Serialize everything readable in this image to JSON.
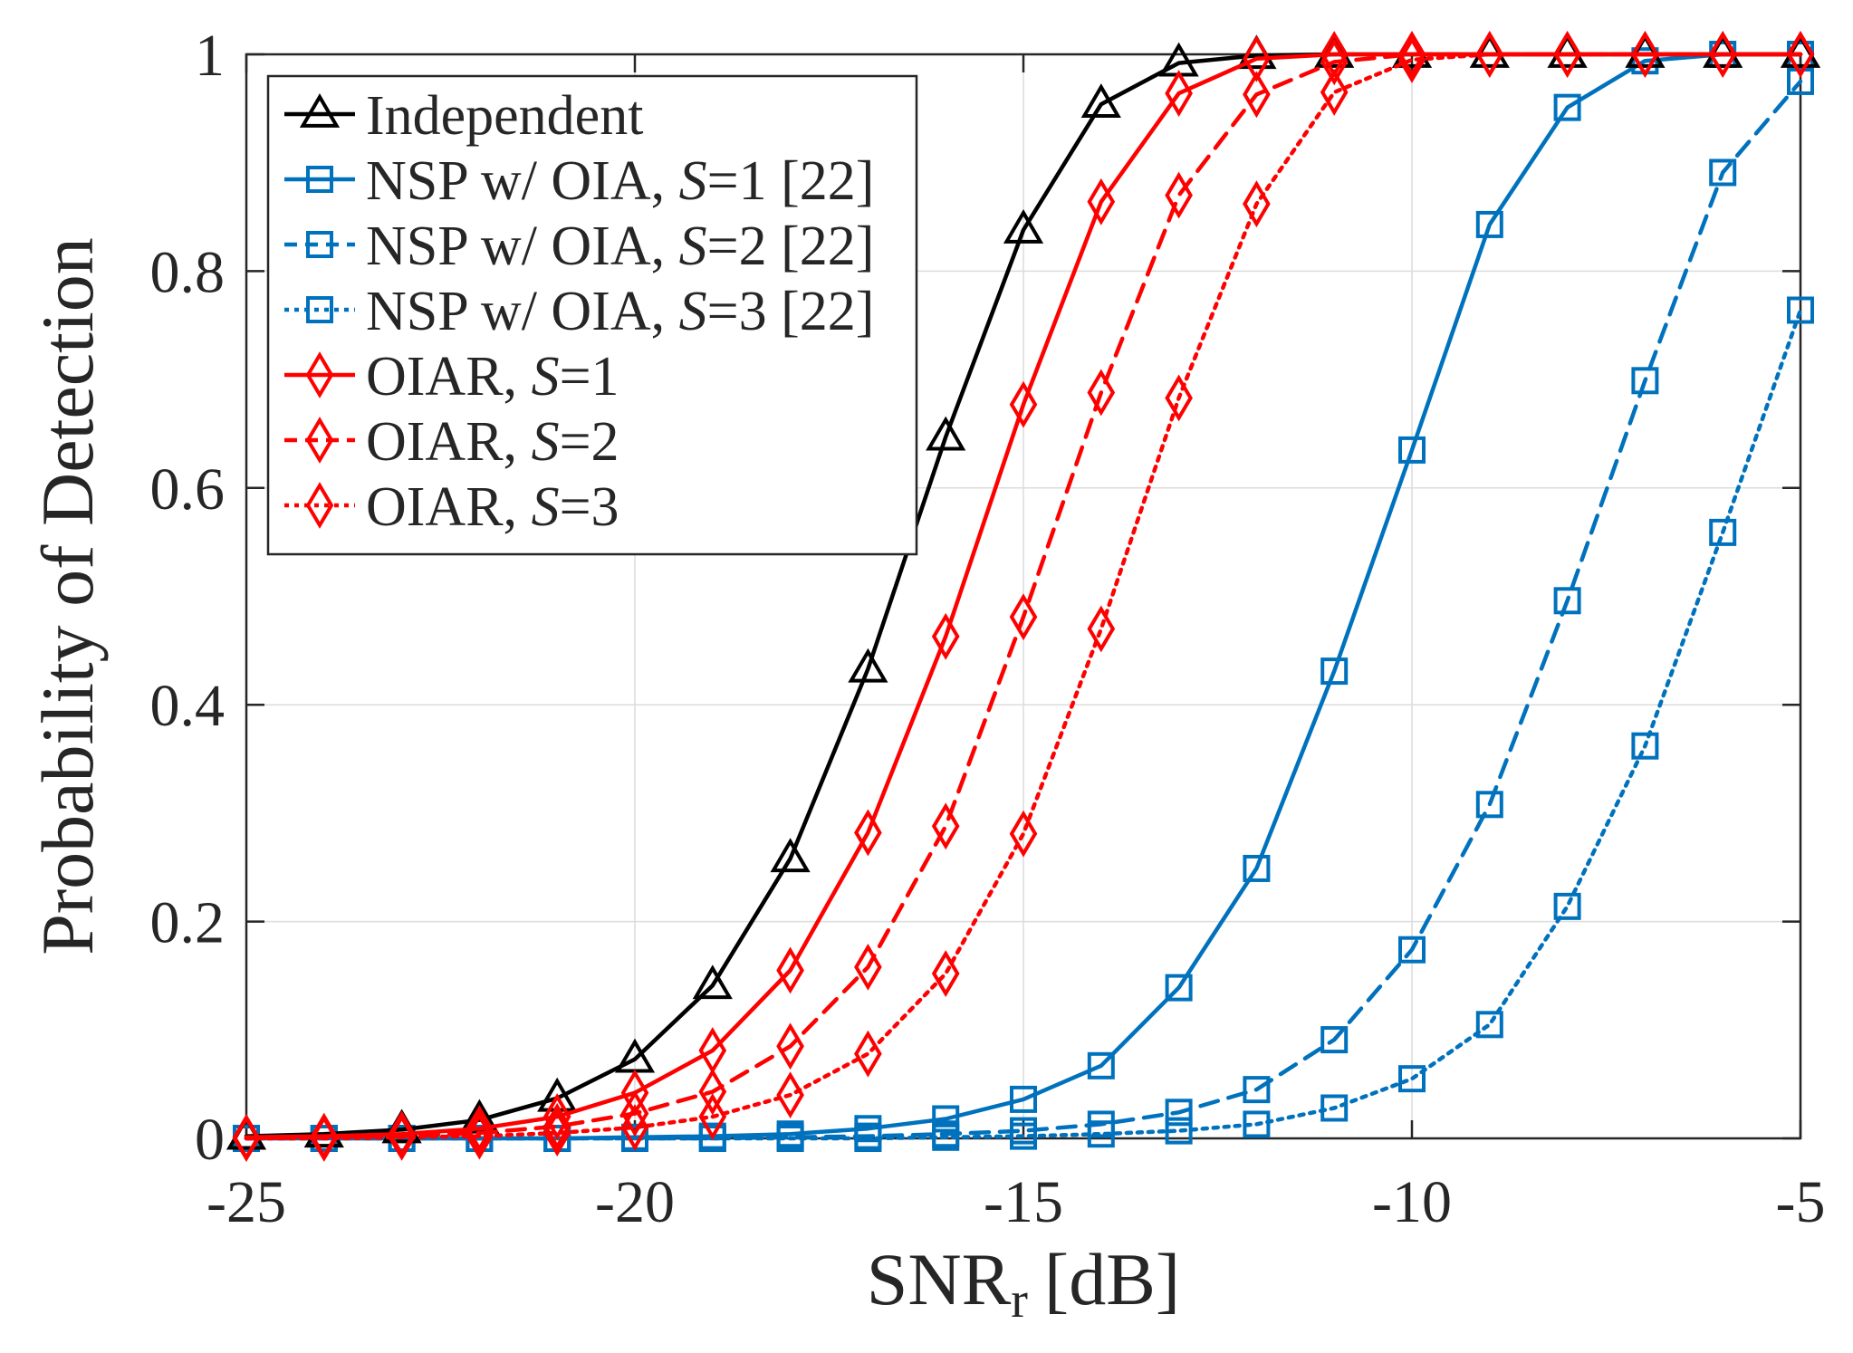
{
  "chart_data": {
    "type": "line",
    "title": "",
    "xlabel": "SNR",
    "xlabel_subscript": "r",
    "xlabel_unit": "[dB]",
    "ylabel": "Probability of Detection",
    "xlim": [
      -25,
      -5
    ],
    "ylim": [
      0,
      1
    ],
    "xticks": [
      -25,
      -20,
      -15,
      -10,
      -5
    ],
    "xtick_labels": [
      "-25",
      "-20",
      "-15",
      "-10",
      "-5"
    ],
    "yticks": [
      0,
      0.2,
      0.4,
      0.6,
      0.8,
      1
    ],
    "ytick_labels": [
      "0",
      "0.2",
      "0.4",
      "0.6",
      "0.8",
      "1"
    ],
    "grid": true,
    "legend_position": "top-left",
    "x": [
      -25,
      -24,
      -23,
      -22,
      -21,
      -20,
      -19,
      -18,
      -17,
      -16,
      -15,
      -14,
      -13,
      -12,
      -11,
      -10,
      -9,
      -8,
      -7,
      -6,
      -5
    ],
    "series": [
      {
        "name": "Independent",
        "legend_parts": [
          {
            "text": "Independent",
            "italic": false
          }
        ],
        "color": "#000000",
        "dash": "solid",
        "marker": "triangle",
        "values": [
          0.002,
          0.004,
          0.008,
          0.017,
          0.037,
          0.073,
          0.141,
          0.258,
          0.433,
          0.647,
          0.838,
          0.954,
          0.992,
          0.999,
          1.0,
          1.0,
          1.0,
          1.0,
          1.0,
          1.0,
          1.0
        ]
      },
      {
        "name": "NSP w/ OIA, S=1 [22]",
        "legend_parts": [
          {
            "text": "NSP w/ OIA, ",
            "italic": false
          },
          {
            "text": "S",
            "italic": true
          },
          {
            "text": "=1 [22]",
            "italic": false
          }
        ],
        "color": "#0072bd",
        "dash": "solid",
        "marker": "square",
        "values": [
          0.0,
          0.0,
          0.0,
          0.0,
          0.0,
          0.001,
          0.002,
          0.004,
          0.009,
          0.018,
          0.036,
          0.067,
          0.139,
          0.249,
          0.431,
          0.635,
          0.843,
          0.951,
          0.994,
          1.0,
          1.0
        ]
      },
      {
        "name": "NSP w/ OIA, S=2 [22]",
        "legend_parts": [
          {
            "text": "NSP w/ OIA, ",
            "italic": false
          },
          {
            "text": "S",
            "italic": true
          },
          {
            "text": "=2 [22]",
            "italic": false
          }
        ],
        "color": "#0072bd",
        "dash": "dashed",
        "marker": "square",
        "values": [
          0.0,
          0.0,
          0.0,
          0.0,
          0.0,
          0.0,
          0.0,
          0.001,
          0.002,
          0.004,
          0.007,
          0.013,
          0.024,
          0.045,
          0.091,
          0.174,
          0.308,
          0.496,
          0.699,
          0.891,
          0.975
        ]
      },
      {
        "name": "NSP w/ OIA, S=3 [22]",
        "legend_parts": [
          {
            "text": "NSP w/ OIA, ",
            "italic": false
          },
          {
            "text": "S",
            "italic": true
          },
          {
            "text": "=3 [22]",
            "italic": false
          }
        ],
        "color": "#0072bd",
        "dash": "dotted",
        "marker": "square",
        "values": [
          0.0,
          0.0,
          0.0,
          0.0,
          0.0,
          0.0,
          0.0,
          0.0,
          0.0,
          0.001,
          0.002,
          0.004,
          0.007,
          0.013,
          0.028,
          0.055,
          0.105,
          0.214,
          0.362,
          0.559,
          0.764
        ]
      },
      {
        "name": "OIAR, S=1",
        "legend_parts": [
          {
            "text": "OIAR, ",
            "italic": false
          },
          {
            "text": "S",
            "italic": true
          },
          {
            "text": "=1",
            "italic": false
          }
        ],
        "color": "#ff0000",
        "dash": "solid",
        "marker": "diamond",
        "values": [
          0.001,
          0.002,
          0.004,
          0.009,
          0.02,
          0.042,
          0.081,
          0.155,
          0.282,
          0.463,
          0.677,
          0.864,
          0.964,
          0.996,
          1.0,
          1.0,
          1.0,
          1.0,
          1.0,
          1.0,
          1.0
        ]
      },
      {
        "name": "OIAR, S=2",
        "legend_parts": [
          {
            "text": "OIAR, ",
            "italic": false
          },
          {
            "text": "S",
            "italic": true
          },
          {
            "text": "=2",
            "italic": false
          }
        ],
        "color": "#ff0000",
        "dash": "dashed",
        "marker": "diamond",
        "values": [
          0.0,
          0.001,
          0.002,
          0.005,
          0.011,
          0.023,
          0.043,
          0.085,
          0.158,
          0.288,
          0.481,
          0.688,
          0.87,
          0.963,
          0.993,
          1.0,
          1.0,
          1.0,
          1.0,
          1.0,
          1.0
        ]
      },
      {
        "name": "OIAR, S=3",
        "legend_parts": [
          {
            "text": "OIAR, ",
            "italic": false
          },
          {
            "text": "S",
            "italic": true
          },
          {
            "text": "=3",
            "italic": false
          }
        ],
        "color": "#ff0000",
        "dash": "dotted",
        "marker": "diamond",
        "values": [
          0.0,
          0.0,
          0.001,
          0.002,
          0.005,
          0.01,
          0.02,
          0.04,
          0.078,
          0.152,
          0.281,
          0.47,
          0.683,
          0.862,
          0.965,
          0.995,
          1.0,
          1.0,
          1.0,
          1.0,
          1.0
        ]
      }
    ]
  }
}
